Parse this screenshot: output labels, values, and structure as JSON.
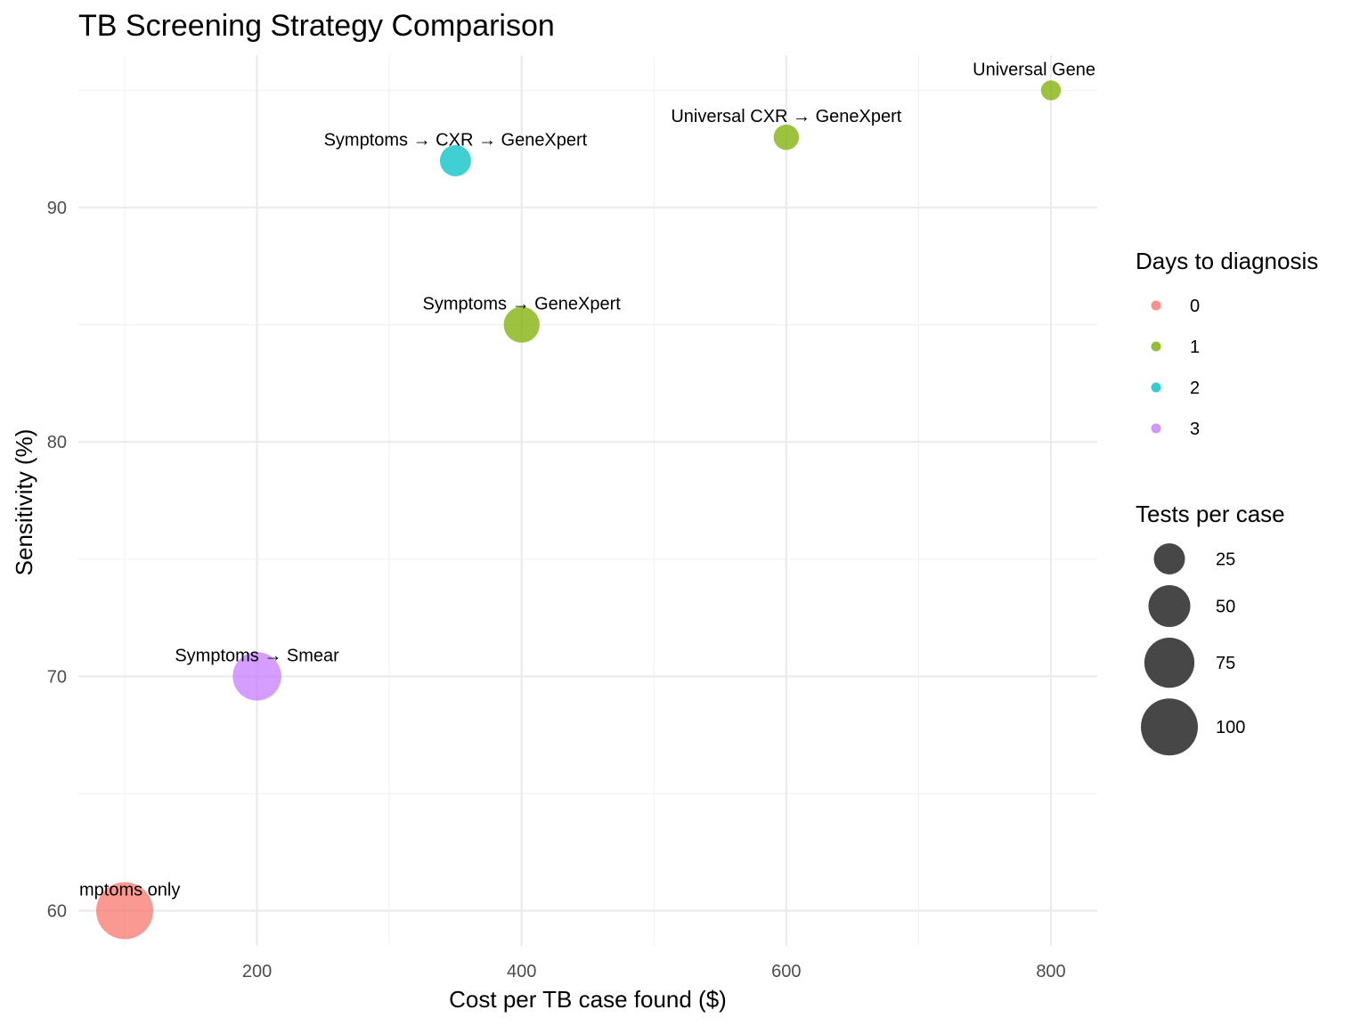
{
  "chart_data": {
    "type": "scatter",
    "title": "TB Screening Strategy Comparison",
    "xlabel": "Cost per TB case found ($)",
    "ylabel": "Sensitivity (%)",
    "xlim": [
      65,
      835
    ],
    "ylim": [
      58.5,
      96.5
    ],
    "x_ticks": [
      200,
      400,
      600,
      800
    ],
    "y_ticks": [
      60,
      70,
      80,
      90
    ],
    "grid": true,
    "legend_position": "right",
    "points": [
      {
        "label": "Symptoms only",
        "display_label": "mptoms only",
        "cost": 100,
        "sensitivity": 60,
        "days": 0,
        "tests": 100
      },
      {
        "label": "Symptoms → Smear",
        "cost": 200,
        "sensitivity": 70,
        "days": 3,
        "tests": 70
      },
      {
        "label": "Symptoms → GeneXpert",
        "cost": 400,
        "sensitivity": 85,
        "days": 1,
        "tests": 35
      },
      {
        "label": "Symptoms → CXR → GeneXpert",
        "cost": 350,
        "sensitivity": 92,
        "days": 2,
        "tests": 25
      },
      {
        "label": "Universal CXR → GeneXpert",
        "cost": 600,
        "sensitivity": 93,
        "days": 1,
        "tests": 15
      },
      {
        "label": "Universal GeneXpert",
        "display_label": "Universal Gene",
        "cost": 800,
        "sensitivity": 95,
        "days": 1,
        "tests": 8
      }
    ],
    "color_legend": {
      "title": "Days to diagnosis",
      "entries": [
        {
          "label": "0",
          "color": "#F8766D"
        },
        {
          "label": "1",
          "color": "#7CAE00"
        },
        {
          "label": "2",
          "color": "#00BFC4"
        },
        {
          "label": "3",
          "color": "#C77CFF"
        }
      ]
    },
    "size_legend": {
      "title": "Tests per case",
      "entries": [
        {
          "label": "25",
          "value": 25
        },
        {
          "label": "50",
          "value": 50
        },
        {
          "label": "75",
          "value": 75
        },
        {
          "label": "100",
          "value": 100
        }
      ],
      "color": "#333333"
    }
  }
}
